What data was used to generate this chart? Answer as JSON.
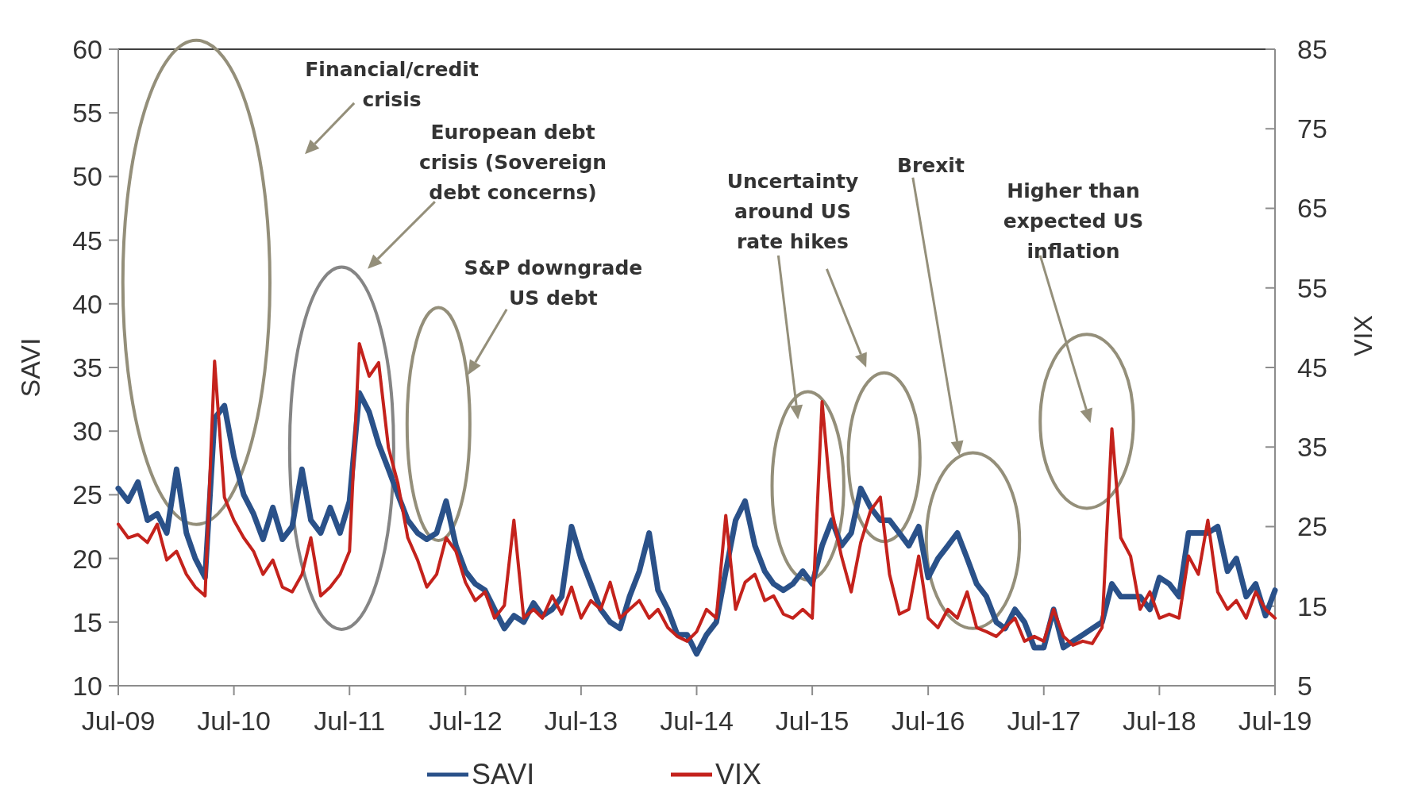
{
  "chart_data": {
    "type": "line",
    "xlabel": null,
    "ylabel": "SAVI",
    "y2label": "VIX",
    "x": [
      "2009-07",
      "2009-08",
      "2009-09",
      "2009-10",
      "2009-11",
      "2009-12",
      "2010-01",
      "2010-02",
      "2010-03",
      "2010-04",
      "2010-05",
      "2010-06",
      "2010-07",
      "2010-08",
      "2010-09",
      "2010-10",
      "2010-11",
      "2010-12",
      "2011-01",
      "2011-02",
      "2011-03",
      "2011-04",
      "2011-05",
      "2011-06",
      "2011-07",
      "2011-08",
      "2011-09",
      "2011-10",
      "2011-11",
      "2011-12",
      "2012-01",
      "2012-02",
      "2012-03",
      "2012-04",
      "2012-05",
      "2012-06",
      "2012-07",
      "2012-08",
      "2012-09",
      "2012-10",
      "2012-11",
      "2012-12",
      "2013-01",
      "2013-02",
      "2013-03",
      "2013-04",
      "2013-05",
      "2013-06",
      "2013-07",
      "2013-08",
      "2013-09",
      "2013-10",
      "2013-11",
      "2013-12",
      "2014-01",
      "2014-02",
      "2014-03",
      "2014-04",
      "2014-05",
      "2014-06",
      "2014-07",
      "2014-08",
      "2014-09",
      "2014-10",
      "2014-11",
      "2014-12",
      "2015-01",
      "2015-02",
      "2015-03",
      "2015-04",
      "2015-05",
      "2015-06",
      "2015-07",
      "2015-08",
      "2015-09",
      "2015-10",
      "2015-11",
      "2015-12",
      "2016-01",
      "2016-02",
      "2016-03",
      "2016-04",
      "2016-05",
      "2016-06",
      "2016-07",
      "2016-08",
      "2016-09",
      "2016-10",
      "2016-11",
      "2016-12",
      "2017-01",
      "2017-02",
      "2017-03",
      "2017-04",
      "2017-05",
      "2017-06",
      "2017-07",
      "2017-08",
      "2017-09",
      "2017-10",
      "2017-11",
      "2017-12",
      "2018-01",
      "2018-02",
      "2018-03",
      "2018-04",
      "2018-05",
      "2018-06",
      "2018-07",
      "2018-08",
      "2018-09",
      "2018-10",
      "2018-11",
      "2018-12",
      "2019-01",
      "2019-02",
      "2019-03",
      "2019-04",
      "2019-05",
      "2019-06",
      "2019-07"
    ],
    "series": [
      {
        "name": "SAVI",
        "color": "#2a5189",
        "values": [
          25.5,
          24.5,
          26,
          23,
          23.5,
          22,
          27,
          22,
          20,
          18.5,
          31,
          32,
          28,
          25,
          23.5,
          21.5,
          24,
          21.5,
          22.5,
          27,
          23,
          22,
          24,
          22,
          24.5,
          33,
          31.5,
          29,
          27,
          25,
          23,
          22,
          21.5,
          22,
          24.5,
          21,
          19,
          18,
          17.5,
          16,
          14.5,
          15.5,
          15,
          16.5,
          15.5,
          16,
          17,
          22.5,
          20,
          18,
          16,
          15,
          14.5,
          17,
          19,
          22,
          17.5,
          16,
          14,
          14,
          12.5,
          14,
          15,
          19,
          23,
          24.5,
          21,
          19,
          18,
          17.5,
          18,
          19,
          18,
          21,
          23,
          21,
          22,
          25.5,
          24,
          23,
          23,
          22,
          21,
          22.5,
          18.5,
          20,
          21,
          22,
          20,
          18,
          17,
          15,
          14.5,
          16,
          15,
          13,
          13,
          16,
          13,
          13.5,
          14,
          14.5,
          15,
          18,
          17,
          17,
          17,
          16,
          18.5,
          18,
          17,
          22,
          22,
          22,
          22.5,
          19,
          20,
          17,
          18,
          15.5,
          17.5
        ]
      },
      {
        "name": "VIX",
        "color": "#c4221c",
        "axis": "y2",
        "values": [
          25.3,
          23.6,
          24,
          23,
          25.3,
          20.8,
          21.9,
          19,
          17.4,
          16.3,
          45.8,
          28.7,
          25.8,
          23.6,
          21.9,
          19,
          20.8,
          17.4,
          16.8,
          19,
          23.6,
          16.3,
          17.4,
          19,
          21.9,
          48,
          43.9,
          45.6,
          34.9,
          30.4,
          23.6,
          20.8,
          17.4,
          19,
          23.6,
          21.9,
          18,
          15.7,
          16.8,
          13.5,
          15.1,
          25.8,
          13.5,
          14.6,
          13.5,
          16.3,
          14,
          17.4,
          13.5,
          15.7,
          14.6,
          18,
          13.5,
          14.6,
          15.7,
          13.5,
          14.6,
          12.3,
          11.2,
          10.6,
          11.8,
          14.6,
          13.5,
          26.4,
          14.6,
          18,
          19,
          15.7,
          16.3,
          14,
          13.5,
          14.6,
          13.5,
          40.7,
          27,
          21.3,
          16.8,
          23,
          27,
          28.7,
          19,
          14,
          14.6,
          21.3,
          13.5,
          12.3,
          14.6,
          13.5,
          16.8,
          12.3,
          11.8,
          11.2,
          12.3,
          13.5,
          10.6,
          11.2,
          10.6,
          14.6,
          11.2,
          10.1,
          10.6,
          10.3,
          12.3,
          37.3,
          23.6,
          21.3,
          14.6,
          16.8,
          13.5,
          14,
          13.5,
          21.3,
          19,
          25.8,
          16.8,
          14.6,
          15.7,
          13.5,
          16.8,
          14.6,
          13.5
        ]
      }
    ],
    "xlim": [
      "2009-07",
      "2019-07"
    ],
    "xticks": [
      {
        "value": "2009-07",
        "label": "Jul-09"
      },
      {
        "value": "2010-07",
        "label": "Jul-10"
      },
      {
        "value": "2011-07",
        "label": "Jul-11"
      },
      {
        "value": "2012-07",
        "label": "Jul-12"
      },
      {
        "value": "2013-07",
        "label": "Jul-13"
      },
      {
        "value": "2014-07",
        "label": "Jul-14"
      },
      {
        "value": "2015-07",
        "label": "Jul-15"
      },
      {
        "value": "2016-07",
        "label": "Jul-16"
      },
      {
        "value": "2017-07",
        "label": "Jul-17"
      },
      {
        "value": "2018-07",
        "label": "Jul-18"
      },
      {
        "value": "2019-07",
        "label": "Jul-19"
      }
    ],
    "ylim": [
      10,
      60
    ],
    "yticks": [
      10,
      15,
      20,
      25,
      30,
      35,
      40,
      45,
      50,
      55,
      60
    ],
    "y2lim": [
      5,
      85
    ],
    "y2ticks": [
      5,
      15,
      25,
      35,
      45,
      55,
      65,
      75,
      85
    ],
    "grid": false,
    "legend": "bottom",
    "line_style": "solid",
    "marker": "none",
    "annotations": [
      "Financial/credit\ncrisis",
      "European debt\ncrisis (Sovereign\ndebt concerns)",
      "S&P downgrade\nUS debt",
      "Uncertainty\naround US\nrate hikes",
      "Brexit",
      "Higher than\nexpected US\ninflation"
    ]
  }
}
